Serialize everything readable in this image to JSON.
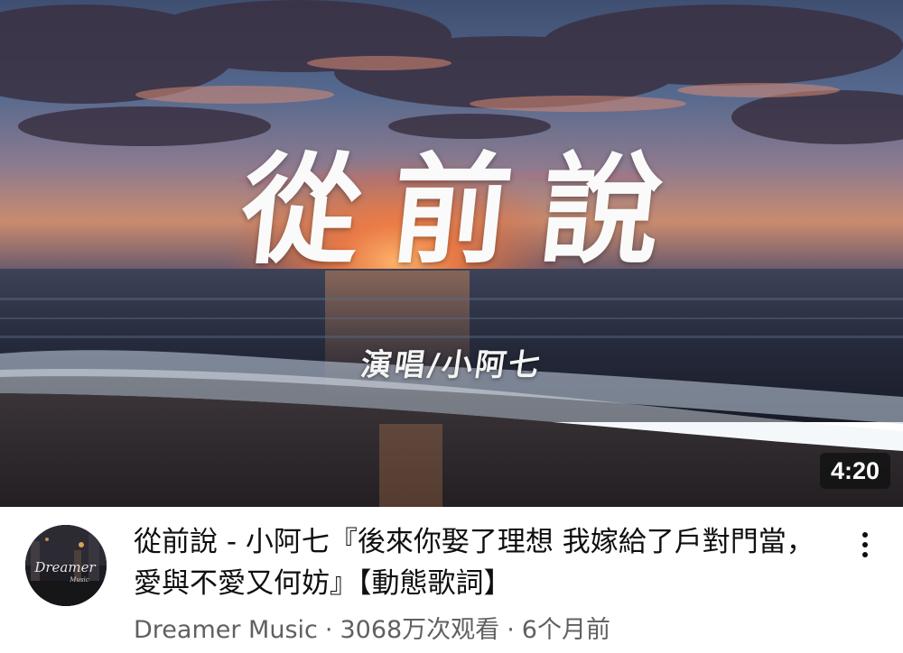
{
  "video": {
    "thumbnail": {
      "title_text": "從前說",
      "singer_text": "演唱/小阿七",
      "duration": "4:20"
    },
    "title": "從前說 - 小阿七『後來你娶了理想 我嫁給了戶對門當，愛與不愛又何妨』【動態歌詞】",
    "channel": "Dreamer Music",
    "views": "3068万次观看",
    "age": "6个月前",
    "separator": "·",
    "avatar_text": "Dreamer",
    "avatar_subtext": "Music",
    "icons": {
      "menu": "more-vert-icon"
    }
  }
}
